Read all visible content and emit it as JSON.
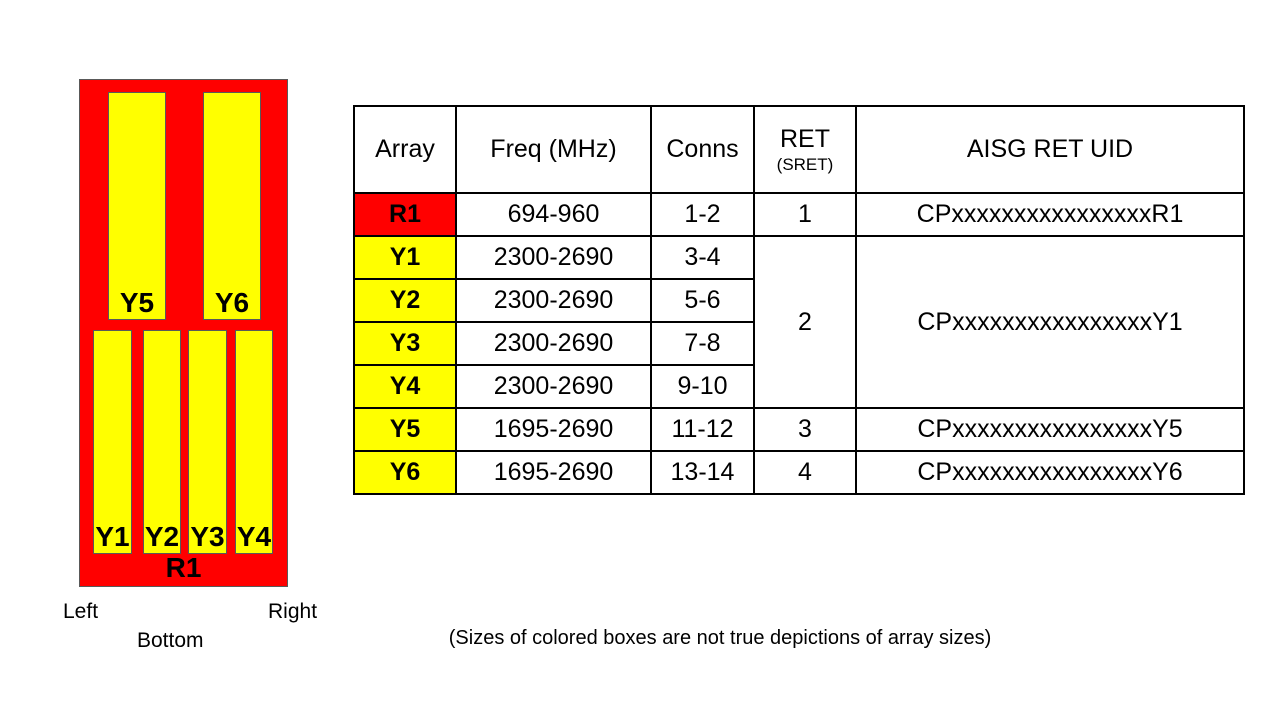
{
  "diagram": {
    "left_label": "Left",
    "right_label": "Right",
    "bottom_label": "Bottom",
    "base_label": "R1",
    "colors": {
      "body_red": "#ff0000",
      "array_yellow": "#ffff00",
      "outline_gray": "#595959"
    },
    "arrays_top": [
      {
        "label": "Y5"
      },
      {
        "label": "Y6"
      }
    ],
    "arrays_bottom": [
      {
        "label": "Y1"
      },
      {
        "label": "Y2"
      },
      {
        "label": "Y3"
      },
      {
        "label": "Y4"
      }
    ]
  },
  "table": {
    "headers": {
      "array": "Array",
      "freq": "Freq (MHz)",
      "conns": "Conns",
      "ret": "RET",
      "ret_sub": "(SRET)",
      "uid": "AISG RET UID"
    },
    "rows": [
      {
        "array": "R1",
        "freq": "694-960",
        "conns": "1-2",
        "ret": "1",
        "uid": "CPxxxxxxxxxxxxxxxxR1",
        "color": "#ff0000"
      },
      {
        "array": "Y1",
        "freq": "2300-2690",
        "conns": "3-4",
        "ret": "2",
        "uid": "CPxxxxxxxxxxxxxxxxY1",
        "color": "#ffff00"
      },
      {
        "array": "Y2",
        "freq": "2300-2690",
        "conns": "5-6",
        "color": "#ffff00"
      },
      {
        "array": "Y3",
        "freq": "2300-2690",
        "conns": "7-8",
        "color": "#ffff00"
      },
      {
        "array": "Y4",
        "freq": "2300-2690",
        "conns": "9-10",
        "color": "#ffff00"
      },
      {
        "array": "Y5",
        "freq": "1695-2690",
        "conns": "11-12",
        "ret": "3",
        "uid": "CPxxxxxxxxxxxxxxxxY5",
        "color": "#ffff00"
      },
      {
        "array": "Y6",
        "freq": "1695-2690",
        "conns": "13-14",
        "ret": "4",
        "uid": "CPxxxxxxxxxxxxxxxxY6",
        "color": "#ffff00"
      }
    ]
  },
  "note": {
    "text": "(Sizes of colored boxes are not true depictions of array sizes)"
  }
}
